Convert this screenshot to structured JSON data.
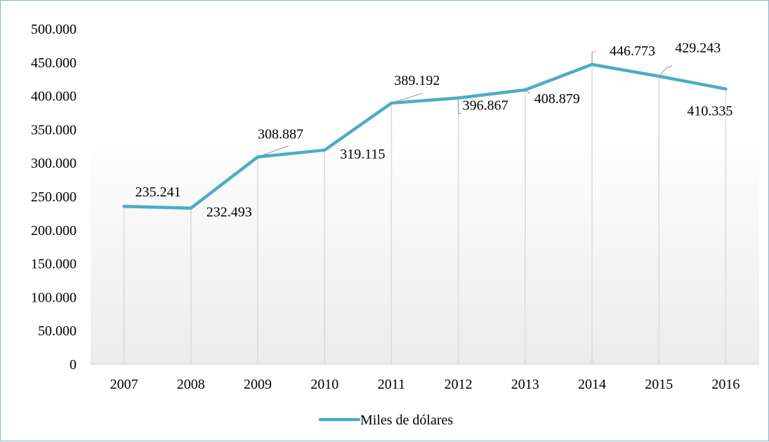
{
  "chart_data": {
    "type": "line",
    "title": "",
    "xlabel": "",
    "ylabel": "",
    "categories": [
      "2007",
      "2008",
      "2009",
      "2010",
      "2011",
      "2012",
      "2013",
      "2014",
      "2015",
      "2016"
    ],
    "series": [
      {
        "name": "Miles de dólares",
        "values": [
          235241,
          232493,
          308887,
          319115,
          389192,
          396867,
          408879,
          446773,
          429243,
          410335
        ],
        "labels": [
          "235.241",
          "232.493",
          "308.887",
          "319.115",
          "389.192",
          "396.867",
          "408.879",
          "446.773",
          "429.243",
          "410.335"
        ],
        "color": "#4bacc6"
      }
    ],
    "ylim": [
      0,
      500000
    ],
    "yticks": [
      0,
      50000,
      100000,
      150000,
      200000,
      250000,
      300000,
      350000,
      400000,
      450000,
      500000
    ],
    "ytick_labels": [
      "0",
      "50.000",
      "100.000",
      "150.000",
      "200.000",
      "250.000",
      "300.000",
      "350.000",
      "400.000",
      "450.000",
      "500.000"
    ],
    "grid": "vertical drop lines",
    "legend_position": "bottom"
  }
}
